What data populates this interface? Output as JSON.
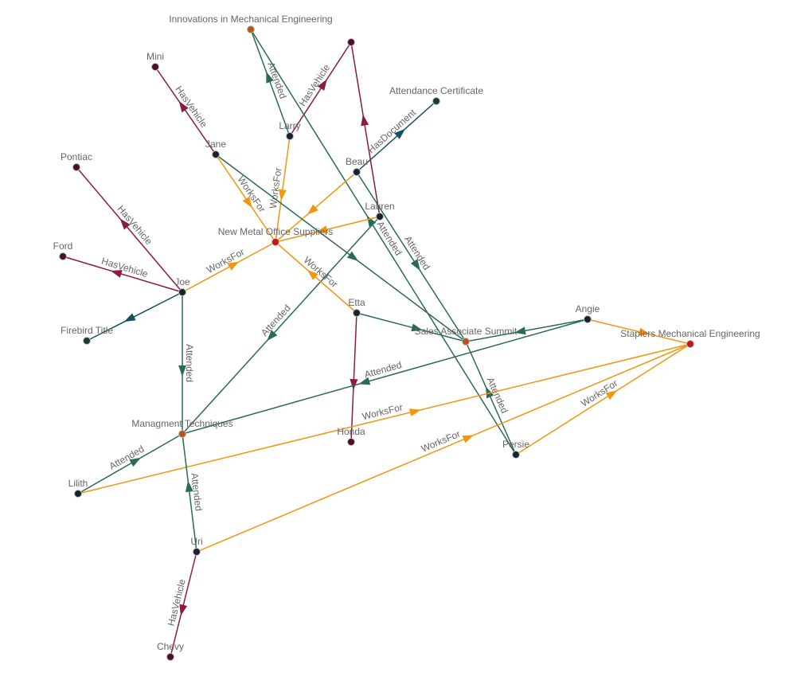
{
  "colors": {
    "HasVehicle": "#8a1c3c",
    "Attended": "#2b6a55",
    "WorksFor": "#f0960f",
    "HasDocument": "#15505f",
    "node_person": "#18222e",
    "node_vehicle": "#4a0f2e",
    "node_event": "#b3571f",
    "node_org": "#c0161b",
    "node_document": "#1d3a2b"
  },
  "nodes": [
    {
      "id": "innov",
      "label": "Innovations in Mechanical Engineering",
      "kind": "event"
    },
    {
      "id": "veh1",
      "label": "",
      "kind": "vehicle"
    },
    {
      "id": "mini",
      "label": "Mini",
      "kind": "vehicle"
    },
    {
      "id": "cert",
      "label": "Attendance Certificate",
      "kind": "document"
    },
    {
      "id": "larry",
      "label": "Larry",
      "kind": "person"
    },
    {
      "id": "jane",
      "label": "Jane",
      "kind": "person"
    },
    {
      "id": "pontiac",
      "label": "Pontiac",
      "kind": "vehicle"
    },
    {
      "id": "beau",
      "label": "Beau",
      "kind": "person"
    },
    {
      "id": "lauren",
      "label": "Lauren",
      "kind": "person"
    },
    {
      "id": "newmetal",
      "label": "New Metal Office Suppliers",
      "kind": "org"
    },
    {
      "id": "ford",
      "label": "Ford",
      "kind": "vehicle"
    },
    {
      "id": "joe",
      "label": "Joe",
      "kind": "person"
    },
    {
      "id": "etta",
      "label": "Etta",
      "kind": "person"
    },
    {
      "id": "angie",
      "label": "Angie",
      "kind": "person"
    },
    {
      "id": "sales",
      "label": "Sales Associate Summit",
      "kind": "event"
    },
    {
      "id": "staplers",
      "label": "Staplers Mechanical Engineering",
      "kind": "org"
    },
    {
      "id": "firebird",
      "label": "Firebird Title",
      "kind": "document"
    },
    {
      "id": "mgmt",
      "label": "Managment Techniques",
      "kind": "event"
    },
    {
      "id": "honda",
      "label": "Honda",
      "kind": "vehicle"
    },
    {
      "id": "persie",
      "label": "Persie",
      "kind": "person"
    },
    {
      "id": "lilith",
      "label": "Lilith",
      "kind": "person"
    },
    {
      "id": "uri",
      "label": "Uri",
      "kind": "person"
    },
    {
      "id": "chevy",
      "label": "Chevy",
      "kind": "vehicle"
    }
  ],
  "edges": [
    {
      "from": "jane",
      "to": "mini",
      "rel": "HasVehicle",
      "label": "HasVehicle"
    },
    {
      "from": "larry",
      "to": "veh1",
      "rel": "HasVehicle",
      "label": "HasVehicle"
    },
    {
      "from": "larry",
      "to": "innov",
      "rel": "Attended",
      "label": "Attended"
    },
    {
      "from": "persie",
      "to": "innov",
      "rel": "Attended",
      "label": "Attended"
    },
    {
      "from": "lauren",
      "to": "veh1",
      "rel": "HasVehicle",
      "label": ""
    },
    {
      "from": "beau",
      "to": "cert",
      "rel": "HasDocument",
      "label": "HasDocument"
    },
    {
      "from": "beau",
      "to": "newmetal",
      "rel": "WorksFor",
      "label": ""
    },
    {
      "from": "beau",
      "to": "sales",
      "rel": "Attended",
      "label": "Attended"
    },
    {
      "from": "jane",
      "to": "newmetal",
      "rel": "WorksFor",
      "label": "WorksFor"
    },
    {
      "from": "larry",
      "to": "newmetal",
      "rel": "WorksFor",
      "label": "WorksFor"
    },
    {
      "from": "lauren",
      "to": "newmetal",
      "rel": "WorksFor",
      "label": ""
    },
    {
      "from": "jane",
      "to": "sales",
      "rel": "Attended",
      "label": ""
    },
    {
      "from": "lauren",
      "to": "mgmt",
      "rel": "Attended",
      "label": "Attended"
    },
    {
      "from": "etta",
      "to": "newmetal",
      "rel": "WorksFor",
      "label": "WorksFor"
    },
    {
      "from": "etta",
      "to": "sales",
      "rel": "Attended",
      "label": ""
    },
    {
      "from": "etta",
      "to": "honda",
      "rel": "HasVehicle",
      "label": ""
    },
    {
      "from": "angie",
      "to": "sales",
      "rel": "Attended",
      "label": ""
    },
    {
      "from": "angie",
      "to": "mgmt",
      "rel": "Attended",
      "label": "Attended"
    },
    {
      "from": "angie",
      "to": "staplers",
      "rel": "WorksFor",
      "label": ""
    },
    {
      "from": "persie",
      "to": "sales",
      "rel": "Attended",
      "label": "Attended"
    },
    {
      "from": "persie",
      "to": "staplers",
      "rel": "WorksFor",
      "label": "WorksFor"
    },
    {
      "from": "lilith",
      "to": "staplers",
      "rel": "WorksFor",
      "label": "WorksFor"
    },
    {
      "from": "lilith",
      "to": "mgmt",
      "rel": "Attended",
      "label": "Attended"
    },
    {
      "from": "uri",
      "to": "staplers",
      "rel": "WorksFor",
      "label": "WorksFor"
    },
    {
      "from": "uri",
      "to": "mgmt",
      "rel": "Attended",
      "label": "Attended"
    },
    {
      "from": "uri",
      "to": "chevy",
      "rel": "HasVehicle",
      "label": "HasVehicle"
    },
    {
      "from": "joe",
      "to": "pontiac",
      "rel": "HasVehicle",
      "label": "HasVehicle"
    },
    {
      "from": "joe",
      "to": "ford",
      "rel": "HasVehicle",
      "label": "HasVehicle"
    },
    {
      "from": "joe",
      "to": "firebird",
      "rel": "HasDocument",
      "label": ""
    },
    {
      "from": "joe",
      "to": "newmetal",
      "rel": "WorksFor",
      "label": "WorksFor"
    },
    {
      "from": "joe",
      "to": "mgmt",
      "rel": "Attended",
      "label": "Attended"
    }
  ]
}
